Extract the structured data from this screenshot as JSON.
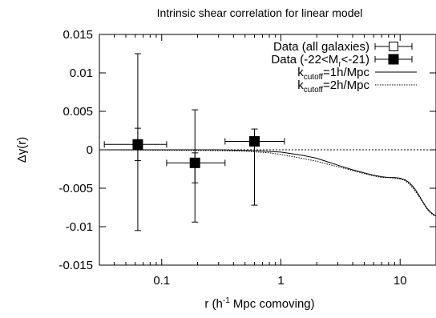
{
  "chart_data": {
    "type": "scatter",
    "title": "Intrinsic shear correlation for linear model",
    "xlabel": "r (h-1 Mpc comoving)",
    "xlabel_parts": {
      "before": "r (h",
      "sup": "-1",
      "after": " Mpc comoving)"
    },
    "ylabel": "Δγ(r)",
    "x_scale": "log",
    "xlim": [
      0.03,
      20
    ],
    "ylim": [
      -0.015,
      0.015
    ],
    "x_ticks": [
      {
        "value": 0.1,
        "label": "0.1"
      },
      {
        "value": 1,
        "label": "1"
      },
      {
        "value": 10,
        "label": "10"
      }
    ],
    "y_ticks": [
      {
        "value": 0.015,
        "label": "0.015"
      },
      {
        "value": 0.01,
        "label": "0.01"
      },
      {
        "value": 0.005,
        "label": "0.005"
      },
      {
        "value": 0,
        "label": "0"
      },
      {
        "value": -0.005,
        "label": "-0.005"
      },
      {
        "value": -0.01,
        "label": "-0.01"
      },
      {
        "value": -0.015,
        "label": "-0.015"
      }
    ],
    "grid": false,
    "legend_position": "top-right",
    "series": [
      {
        "name": "Data (all galaxies)",
        "legend": {
          "main": "Data (all galaxies)"
        },
        "kind": "points",
        "marker": "open-square",
        "points": [
          {
            "x": 0.063,
            "y": 0.0007,
            "xlo": 0.033,
            "xhi": 0.11,
            "ylo": -0.0105,
            "yhi": 0.0125
          },
          {
            "x": 0.19,
            "y": -0.0017,
            "xlo": 0.11,
            "xhi": 0.34,
            "ylo": -0.0094,
            "yhi": 0.0052
          }
        ]
      },
      {
        "name": "Data (-22<Mr<-21)",
        "legend": {
          "main": "Data (-22<M",
          "sub": "r",
          "tail": "<-21)"
        },
        "kind": "points",
        "marker": "filled-square",
        "points": [
          {
            "x": 0.063,
            "y": 0.0007,
            "xlo": 0.063,
            "xhi": 0.063,
            "ylo": -0.0014,
            "yhi": 0.0028
          },
          {
            "x": 0.19,
            "y": -0.0017,
            "xlo": 0.19,
            "xhi": 0.19,
            "ylo": -0.0043,
            "yhi": -0.0004
          },
          {
            "x": 0.6,
            "y": 0.0011,
            "xlo": 0.34,
            "xhi": 1.07,
            "ylo": -0.0072,
            "yhi": 0.0027
          }
        ]
      },
      {
        "name": "kcutoff=1h/Mpc",
        "legend": {
          "main": "k",
          "sub": "cutoff",
          "tail": "=1h/Mpc"
        },
        "kind": "line",
        "style": "solid",
        "x": [
          0.03,
          0.3,
          0.6,
          1.0,
          1.5,
          2.0,
          2.5,
          3.0,
          4.0,
          5.0,
          6.0,
          7.0,
          8.0,
          9.0,
          10.0,
          11.0,
          12.0,
          13.0,
          14.0,
          15.0,
          16.0,
          17.0,
          18.0,
          19.0,
          20.0
        ],
        "y": [
          0,
          0,
          -0.0001,
          -0.0003,
          -0.0007,
          -0.0011,
          -0.0016,
          -0.002,
          -0.0026,
          -0.003,
          -0.0033,
          -0.0035,
          -0.0036,
          -0.0036,
          -0.0037,
          -0.0039,
          -0.0043,
          -0.0049,
          -0.0056,
          -0.0064,
          -0.0071,
          -0.0077,
          -0.0081,
          -0.0084,
          -0.0086
        ]
      },
      {
        "name": "kcutoff=2h/Mpc",
        "legend": {
          "main": "k",
          "sub": "cutoff",
          "tail": "=2h/Mpc"
        },
        "kind": "line",
        "style": "dotted",
        "x": [
          0.03,
          0.3,
          0.5,
          0.8,
          1.0,
          1.5,
          2.0,
          2.5,
          3.0,
          4.0,
          5.0,
          6.0,
          7.0,
          8.0,
          9.0,
          10.0,
          11.0,
          12.0,
          13.0,
          14.0,
          15.0,
          16.0,
          17.0,
          18.0,
          19.0,
          20.0
        ],
        "y": [
          0,
          -0.0001,
          -0.0002,
          -0.0004,
          -0.0006,
          -0.0011,
          -0.0015,
          -0.0019,
          -0.0022,
          -0.0027,
          -0.0031,
          -0.0034,
          -0.0036,
          -0.0036,
          -0.0037,
          -0.0038,
          -0.004,
          -0.0045,
          -0.0051,
          -0.0058,
          -0.0065,
          -0.0072,
          -0.0078,
          -0.0082,
          -0.0085,
          -0.0086
        ]
      }
    ]
  }
}
